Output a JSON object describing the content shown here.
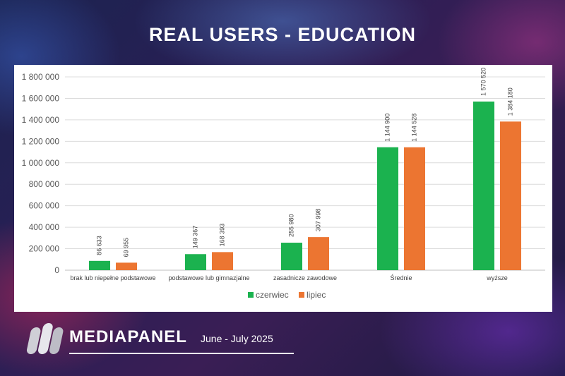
{
  "header": {
    "title": "REAL USERS - EDUCATION"
  },
  "footer": {
    "brand": "MEDIAPANEL",
    "period": "June - July 2025"
  },
  "colors": {
    "czerwiec": "#1bb24f",
    "lipiec": "#ec7531"
  },
  "chart_data": {
    "type": "bar",
    "title": "",
    "xlabel": "",
    "ylabel": "",
    "categories": [
      "brak lub niepełne podstawowe",
      "podstawowe lub gimnazjalne",
      "zasadnicze zawodowe",
      "Średnie",
      "wyższe"
    ],
    "series": [
      {
        "name": "czerwiec",
        "values": [
          86633,
          149367,
          255980,
          1144900,
          1570520
        ],
        "labels": [
          "86 633",
          "149 367",
          "255 980",
          "1 144 900",
          "1 570 520"
        ]
      },
      {
        "name": "lipiec",
        "values": [
          69955,
          168393,
          307998,
          1144528,
          1384180
        ],
        "labels": [
          "69 955",
          "168 393",
          "307 998",
          "1 144 528",
          "1 384 180"
        ]
      }
    ],
    "ylim": [
      0,
      1800000
    ],
    "yticks": [
      0,
      200000,
      400000,
      600000,
      800000,
      1000000,
      1200000,
      1400000,
      1600000,
      1800000
    ],
    "ytick_labels": [
      "0",
      "200 000",
      "400 000",
      "600 000",
      "800 000",
      "1 000 000",
      "1 200 000",
      "1 400 000",
      "1 600 000",
      "1 800 000"
    ],
    "grid": true,
    "legend": "bottom"
  }
}
